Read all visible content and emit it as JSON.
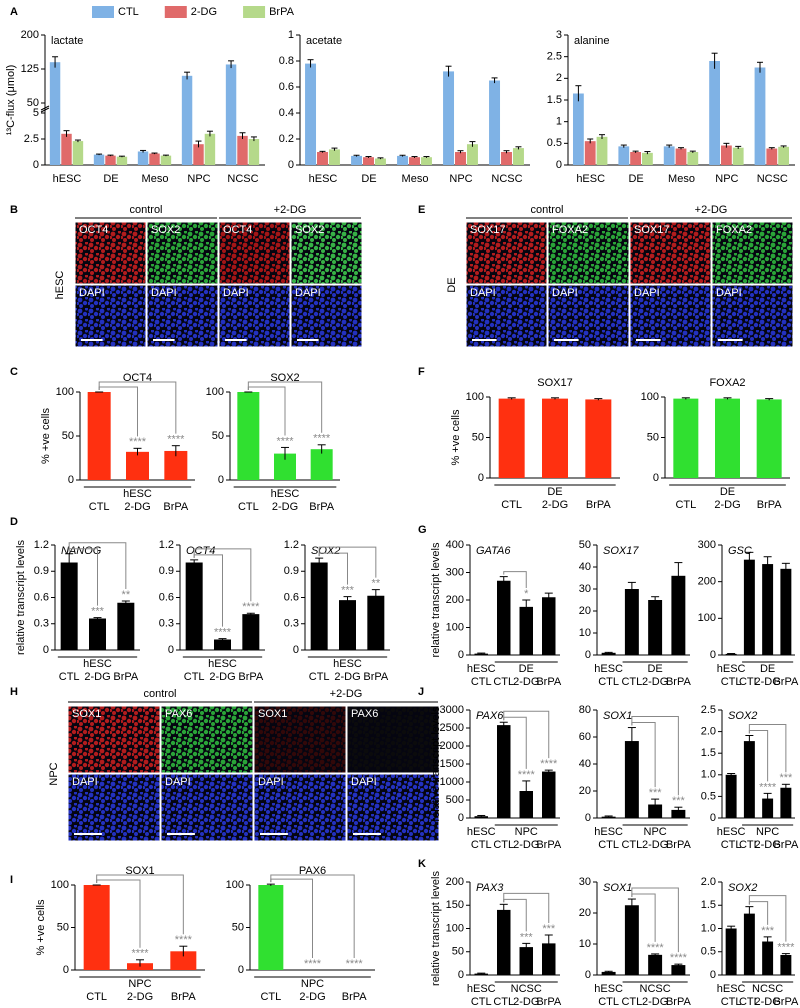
{
  "panel_labels": [
    "A",
    "B",
    "C",
    "D",
    "E",
    "F",
    "G",
    "H",
    "I",
    "J",
    "K"
  ],
  "images": [
    {
      "side_label": "hESC",
      "conditions": [
        "control",
        "+2-DG"
      ],
      "tiles": [
        [
          "OCT4",
          "SOX2",
          "OCT4",
          "SOX2"
        ],
        [
          "DAPI",
          "DAPI",
          "DAPI",
          "DAPI"
        ]
      ],
      "tile_colors": [
        [
          "#d02020",
          "#30c040",
          "#c01818",
          "#40d050"
        ],
        [
          "#2838e0",
          "#2838e0",
          "#2838e0",
          "#2838e0"
        ]
      ]
    },
    {
      "side_label": "DE",
      "conditions": [
        "control",
        "+2-DG"
      ],
      "tiles": [
        [
          "SOX17",
          "FOXA2",
          "SOX17",
          "FOXA2"
        ],
        [
          "DAPI",
          "DAPI",
          "DAPI",
          "DAPI"
        ]
      ],
      "tile_colors": [
        [
          "#d02020",
          "#30c040",
          "#d02020",
          "#30c040"
        ],
        [
          "#2838e0",
          "#2838e0",
          "#2838e0",
          "#2838e0"
        ]
      ]
    },
    {
      "side_label": "NPC",
      "conditions": [
        "control",
        "+2-DG"
      ],
      "tiles": [
        [
          "SOX1",
          "PAX6",
          "SOX1",
          "PAX6"
        ],
        [
          "DAPI",
          "DAPI",
          "DAPI",
          "DAPI"
        ]
      ],
      "tile_colors": [
        [
          "#d02020",
          "#30c040",
          "#3a0808",
          "#0c0c0c"
        ],
        [
          "#2838e0",
          "#2838e0",
          "#2838e0",
          "#2838e0"
        ]
      ]
    }
  ],
  "chart_data": [
    {
      "type": "bar",
      "title": "lactate",
      "ylabel": "¹³C-flux (μmol)",
      "categories": [
        "hESC",
        "DE",
        "Meso",
        "NPC",
        "NCSC"
      ],
      "ylim": [
        0,
        200
      ],
      "ybreak": [
        5,
        50
      ],
      "yticks": [
        0,
        2.5,
        5,
        50,
        125,
        200
      ],
      "series": [
        {
          "name": "CTL",
          "color": "#7fb2e5",
          "values": [
            140,
            1.0,
            1.3,
            110,
            135
          ],
          "errors": [
            12,
            0.05,
            0.1,
            8,
            8
          ]
        },
        {
          "name": "2-DG",
          "color": "#e06a6a",
          "values": [
            3.0,
            0.9,
            1.1,
            2.0,
            2.8
          ],
          "errors": [
            0.3,
            0.05,
            0.05,
            0.3,
            0.3
          ]
        },
        {
          "name": "BrPA",
          "color": "#b5d98a",
          "values": [
            2.3,
            0.8,
            0.9,
            3.0,
            2.5
          ],
          "errors": [
            0.1,
            0.05,
            0.05,
            0.25,
            0.2
          ]
        }
      ]
    },
    {
      "type": "bar",
      "title": "acetate",
      "categories": [
        "hESC",
        "DE",
        "Meso",
        "NPC",
        "NCSC"
      ],
      "ylim": [
        0,
        1
      ],
      "yticks": [
        0,
        0.2,
        0.4,
        0.6,
        0.8,
        1
      ],
      "series": [
        {
          "color": "#7fb2e5",
          "values": [
            0.78,
            0.07,
            0.07,
            0.72,
            0.65
          ],
          "errors": [
            0.03,
            0.005,
            0.005,
            0.04,
            0.02
          ]
        },
        {
          "color": "#e06a6a",
          "values": [
            0.1,
            0.06,
            0.06,
            0.1,
            0.1
          ],
          "errors": [
            0.005,
            0.005,
            0.005,
            0.01,
            0.01
          ]
        },
        {
          "color": "#b5d98a",
          "values": [
            0.12,
            0.05,
            0.06,
            0.16,
            0.13
          ],
          "errors": [
            0.01,
            0.005,
            0.005,
            0.02,
            0.01
          ]
        }
      ]
    },
    {
      "type": "bar",
      "title": "alanine",
      "categories": [
        "hESC",
        "DE",
        "Meso",
        "NPC",
        "NCSC"
      ],
      "ylim": [
        0,
        3
      ],
      "yticks": [
        0,
        0.5,
        1,
        1.5,
        2,
        2.5,
        3
      ],
      "series": [
        {
          "color": "#7fb2e5",
          "values": [
            1.65,
            0.43,
            0.43,
            2.4,
            2.25
          ],
          "errors": [
            0.18,
            0.03,
            0.03,
            0.18,
            0.12
          ]
        },
        {
          "color": "#e06a6a",
          "values": [
            0.55,
            0.3,
            0.38,
            0.45,
            0.38
          ],
          "errors": [
            0.05,
            0.02,
            0.02,
            0.05,
            0.02
          ]
        },
        {
          "color": "#b5d98a",
          "values": [
            0.65,
            0.28,
            0.3,
            0.4,
            0.42
          ],
          "errors": [
            0.05,
            0.03,
            0.02,
            0.03,
            0.02
          ]
        }
      ]
    },
    {
      "type": "bar",
      "title": "OCT4",
      "ylabel": "% +ve cells",
      "groups": [
        {
          "label": "hESC",
          "categories": [
            "CTL",
            "2-DG",
            "BrPA"
          ]
        }
      ],
      "values": [
        100,
        32,
        33
      ],
      "errors": [
        0,
        4,
        6
      ],
      "significance": [
        null,
        "****",
        "****"
      ],
      "color": "#ff3010",
      "ylim": [
        0,
        100
      ],
      "yticks": [
        0,
        50,
        100
      ]
    },
    {
      "type": "bar",
      "title": "SOX2",
      "groups": [
        {
          "label": "hESC",
          "categories": [
            "CTL",
            "2-DG",
            "BrPA"
          ]
        }
      ],
      "values": [
        100,
        30,
        35
      ],
      "errors": [
        0,
        7,
        5
      ],
      "significance": [
        null,
        "****",
        "****"
      ],
      "color": "#30e030",
      "ylim": [
        0,
        100
      ],
      "yticks": [
        0,
        50,
        100
      ]
    },
    {
      "type": "bar",
      "title": "SOX17",
      "ylabel": "% +ve cells",
      "groups": [
        {
          "label": "DE",
          "categories": [
            "CTL",
            "2-DG",
            "BrPA"
          ]
        }
      ],
      "values": [
        98,
        98,
        97
      ],
      "errors": [
        1,
        1,
        1
      ],
      "color": "#ff3010",
      "ylim": [
        0,
        100
      ],
      "yticks": [
        0,
        50,
        100
      ]
    },
    {
      "type": "bar",
      "title": "FOXA2",
      "groups": [
        {
          "label": "DE",
          "categories": [
            "CTL",
            "2-DG",
            "BrPA"
          ]
        }
      ],
      "values": [
        98,
        98,
        97
      ],
      "errors": [
        1,
        1,
        1
      ],
      "color": "#30e030",
      "ylim": [
        0,
        100
      ],
      "yticks": [
        0,
        50,
        100
      ]
    },
    {
      "type": "bar",
      "title": "NANOG",
      "title_style": "italic",
      "ylabel": "relative transcript levels",
      "groups": [
        {
          "label": "hESC",
          "categories": [
            "CTL",
            "2-DG",
            "BrPA"
          ]
        }
      ],
      "values": [
        1.0,
        0.36,
        0.54
      ],
      "errors": [
        0.1,
        0.01,
        0.02
      ],
      "significance": [
        null,
        "***",
        "**"
      ],
      "color": "#000000",
      "ylim": [
        0,
        1.2
      ],
      "yticks": [
        0,
        0.3,
        0.6,
        0.9,
        1.2
      ]
    },
    {
      "type": "bar",
      "title": "OCT4",
      "title_style": "italic",
      "groups": [
        {
          "label": "hESC",
          "categories": [
            "CTL",
            "2-DG",
            "BrPA"
          ]
        }
      ],
      "values": [
        1.0,
        0.12,
        0.41
      ],
      "errors": [
        0.03,
        0.01,
        0.01
      ],
      "significance": [
        null,
        "****",
        "****"
      ],
      "color": "#000000",
      "ylim": [
        0,
        1.2
      ],
      "yticks": [
        0,
        0.3,
        0.6,
        0.9,
        1.2
      ]
    },
    {
      "type": "bar",
      "title": "SOX2",
      "title_style": "italic",
      "groups": [
        {
          "label": "hESC",
          "categories": [
            "CTL",
            "2-DG",
            "BrPA"
          ]
        }
      ],
      "values": [
        1.0,
        0.57,
        0.62
      ],
      "errors": [
        0.05,
        0.04,
        0.07
      ],
      "significance": [
        null,
        "***",
        "**"
      ],
      "color": "#000000",
      "ylim": [
        0,
        1.2
      ],
      "yticks": [
        0,
        0.3,
        0.6,
        0.9,
        1.2
      ]
    },
    {
      "type": "bar",
      "title": "GATA6",
      "title_style": "italic",
      "ylabel": "relative transcript levels",
      "groups": [
        {
          "label": "hESC",
          "categories": [
            "CTL"
          ]
        },
        {
          "label": "DE",
          "categories": [
            "CTL",
            "2-DG",
            "BrPA"
          ]
        }
      ],
      "values": [
        5,
        270,
        175,
        210
      ],
      "errors": [
        2,
        15,
        25,
        15
      ],
      "significance": [
        null,
        null,
        "*",
        null
      ],
      "color": "#000000",
      "ylim": [
        0,
        400
      ],
      "yticks": [
        0,
        100,
        200,
        300,
        400
      ]
    },
    {
      "type": "bar",
      "title": "SOX17",
      "title_style": "italic",
      "groups": [
        {
          "label": "hESC",
          "categories": [
            "CTL"
          ]
        },
        {
          "label": "DE",
          "categories": [
            "CTL",
            "2-DG",
            "BrPA"
          ]
        }
      ],
      "values": [
        1,
        30,
        25,
        36
      ],
      "errors": [
        0.2,
        3,
        1.5,
        6
      ],
      "color": "#000000",
      "ylim": [
        0,
        50
      ],
      "yticks": [
        0,
        10,
        20,
        30,
        40,
        50
      ]
    },
    {
      "type": "bar",
      "title": "GSC",
      "title_style": "italic",
      "groups": [
        {
          "label": "hESC",
          "categories": [
            "CTL"
          ]
        },
        {
          "label": "DE",
          "categories": [
            "CTL",
            "2-DG",
            "BrPA"
          ]
        }
      ],
      "values": [
        3,
        260,
        248,
        235
      ],
      "errors": [
        1,
        20,
        20,
        15
      ],
      "color": "#000000",
      "ylim": [
        0,
        300
      ],
      "yticks": [
        0,
        100,
        200,
        300
      ]
    },
    {
      "type": "bar",
      "title": "PAX6",
      "title_style": "italic",
      "ylabel": "relative transcript levels",
      "groups": [
        {
          "label": "hESC",
          "categories": [
            "CTL"
          ]
        },
        {
          "label": "NPC",
          "categories": [
            "CTL",
            "2-DG",
            "BrPA"
          ]
        }
      ],
      "values": [
        50,
        2580,
        750,
        1290
      ],
      "errors": [
        20,
        80,
        280,
        40
      ],
      "significance": [
        null,
        null,
        "****",
        "****"
      ],
      "color": "#000000",
      "ylim": [
        0,
        3000
      ],
      "yticks": [
        0,
        500,
        1000,
        1500,
        2000,
        2500,
        3000
      ]
    },
    {
      "type": "bar",
      "title": "SOX1",
      "title_style": "italic",
      "groups": [
        {
          "label": "hESC",
          "categories": [
            "CTL"
          ]
        },
        {
          "label": "NPC",
          "categories": [
            "CTL",
            "2-DG",
            "BrPA"
          ]
        }
      ],
      "values": [
        1,
        57,
        10,
        6
      ],
      "errors": [
        0.5,
        10,
        4,
        2
      ],
      "significance": [
        null,
        null,
        "***",
        "***"
      ],
      "color": "#000000",
      "ylim": [
        0,
        80
      ],
      "yticks": [
        0,
        20,
        40,
        60,
        80
      ]
    },
    {
      "type": "bar",
      "title": "SOX2",
      "title_style": "italic",
      "groups": [
        {
          "label": "hESC",
          "categories": [
            "CTL"
          ]
        },
        {
          "label": "NPC",
          "categories": [
            "CTL",
            "2-DG",
            "BrPA"
          ]
        }
      ],
      "values": [
        1.0,
        1.78,
        0.45,
        0.7
      ],
      "errors": [
        0.03,
        0.13,
        0.12,
        0.08
      ],
      "significance": [
        null,
        null,
        "****",
        "***"
      ],
      "color": "#000000",
      "ylim": [
        0,
        2.5
      ],
      "yticks": [
        0,
        0.5,
        {
          "value": 1,
          "label": "1.0"
        },
        1.5,
        {
          "value": 2,
          "label": "2.0"
        },
        2.5
      ]
    },
    {
      "type": "bar",
      "title": "SOX1",
      "ylabel": "% +ve cells",
      "groups": [
        {
          "label": "NPC",
          "categories": [
            "CTL",
            "2-DG",
            "BrPA"
          ]
        }
      ],
      "values": [
        100,
        8,
        22
      ],
      "errors": [
        0,
        4,
        6
      ],
      "significance": [
        null,
        "****",
        "****"
      ],
      "color": "#ff3010",
      "ylim": [
        0,
        100
      ],
      "yticks": [
        0,
        50,
        100
      ]
    },
    {
      "type": "bar",
      "title": "PAX6",
      "groups": [
        {
          "label": "NPC",
          "categories": [
            "CTL",
            "2-DG",
            "BrPA"
          ]
        }
      ],
      "values": [
        100,
        0,
        0
      ],
      "errors": [
        1,
        0,
        0
      ],
      "significance": [
        null,
        "****",
        "****"
      ],
      "color": "#30e030",
      "ylim": [
        0,
        100
      ],
      "yticks": [
        0,
        50,
        100
      ]
    },
    {
      "type": "bar",
      "title": "PAX3",
      "title_style": "italic",
      "ylabel": "relative transcript levels",
      "groups": [
        {
          "label": "hESC",
          "categories": [
            "CTL"
          ]
        },
        {
          "label": "NCSC",
          "categories": [
            "CTL",
            "2-DG",
            "BrPA"
          ]
        }
      ],
      "values": [
        3,
        140,
        60,
        68
      ],
      "errors": [
        1,
        12,
        8,
        18
      ],
      "significance": [
        null,
        null,
        "***",
        "***"
      ],
      "color": "#000000",
      "ylim": [
        0,
        200
      ],
      "yticks": [
        0,
        50,
        100,
        150,
        200
      ]
    },
    {
      "type": "bar",
      "title": "SOX1",
      "title_style": "italic",
      "groups": [
        {
          "label": "hESC",
          "categories": [
            "CTL"
          ]
        },
        {
          "label": "NCSC",
          "categories": [
            "CTL",
            "2-DG",
            "BrPA"
          ]
        }
      ],
      "values": [
        1,
        22.5,
        6.5,
        3.2
      ],
      "errors": [
        0.2,
        2,
        0.3,
        0.3
      ],
      "significance": [
        null,
        null,
        "****",
        "****"
      ],
      "color": "#000000",
      "ylim": [
        0,
        30
      ],
      "yticks": [
        0,
        10,
        20,
        30
      ]
    },
    {
      "type": "bar",
      "title": "SOX2",
      "title_style": "italic",
      "groups": [
        {
          "label": "hESC",
          "categories": [
            "CTL"
          ]
        },
        {
          "label": "NCSC",
          "categories": [
            "CTL",
            "2-DG",
            "BrPA"
          ]
        }
      ],
      "values": [
        1.0,
        1.32,
        0.72,
        0.43
      ],
      "errors": [
        0.05,
        0.15,
        0.1,
        0.03
      ],
      "significance": [
        null,
        null,
        "***",
        "****"
      ],
      "color": "#000000",
      "ylim": [
        0,
        2
      ],
      "yticks": [
        0,
        0.5,
        {
          "value": 1,
          "label": "1.0"
        },
        1.5,
        {
          "value": 2,
          "label": "2.0"
        }
      ]
    }
  ]
}
